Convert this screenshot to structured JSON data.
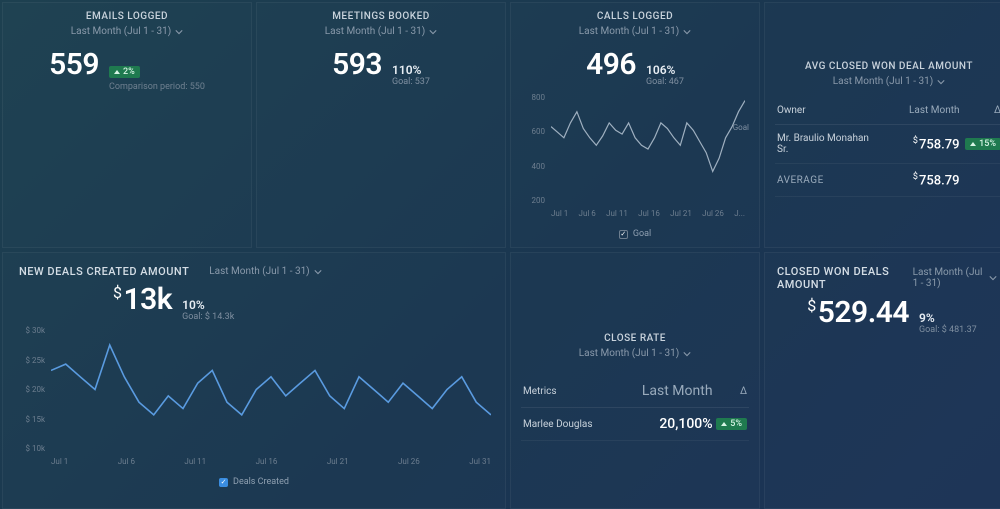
{
  "period_label": "Last Month (Jul 1 - 31)",
  "colors": {
    "line_blue": "#5a9be0",
    "line_gray": "#9fb0c0",
    "badge_bg": "#1f7a4f"
  },
  "emails": {
    "title": "EMAILS LOGGED",
    "value": "559",
    "delta": "2%",
    "comparison": "Comparison period: 550"
  },
  "meetings": {
    "title": "MEETINGS BOOKED",
    "value": "593",
    "pct": "110%",
    "goal": "Goal: 537"
  },
  "calls": {
    "title": "CALLS LOGGED",
    "value": "496",
    "pct": "106%",
    "goal": "Goal: 467",
    "y_ticks": [
      "800",
      "600",
      "400",
      "200"
    ],
    "x_ticks": [
      "Jul 1",
      "Jul 6",
      "Jul 11",
      "Jul 16",
      "Jul 21",
      "Jul 26",
      "J..."
    ],
    "goal_tag": "Goal",
    "legend": "Goal",
    "series": [
      620,
      590,
      560,
      640,
      700,
      610,
      560,
      520,
      570,
      640,
      600,
      580,
      640,
      560,
      520,
      500,
      560,
      640,
      610,
      560,
      520,
      640,
      600,
      540,
      480,
      380,
      450,
      560,
      620,
      700,
      760
    ],
    "ylim": [
      200,
      800
    ]
  },
  "avg_closed": {
    "title": "AVG CLOSED WON DEAL AMOUNT",
    "headers": {
      "c1": "Owner",
      "c2": "Last Month",
      "c3": "Δ"
    },
    "row": {
      "owner": "Mr. Braulio Monahan Sr.",
      "value": "758.79",
      "delta": "15%"
    },
    "avg": {
      "label": "AVERAGE",
      "value": "758.79"
    }
  },
  "new_deals": {
    "title": "NEW DEALS CREATED AMOUNT",
    "value": "13k",
    "pct": "10%",
    "goal": "Goal: $ 14.3k",
    "y_ticks": [
      "$ 30k",
      "$ 25k",
      "$ 20k",
      "$ 15k",
      "$ 10k"
    ],
    "x_ticks": [
      "Jul 1",
      "Jul 6",
      "Jul 11",
      "Jul 16",
      "Jul 21",
      "Jul 26",
      "Jul 31"
    ],
    "legend": "Deals Created",
    "series": [
      23,
      24,
      22,
      20,
      27,
      22,
      18,
      16,
      19,
      17,
      21,
      23,
      18,
      16,
      20,
      22,
      19,
      21,
      23,
      19,
      17,
      22,
      20,
      18,
      21,
      19,
      17,
      20,
      22,
      18,
      16
    ],
    "ylim": [
      10,
      30
    ]
  },
  "close_rate": {
    "title": "CLOSE RATE",
    "headers": {
      "c1": "Metrics",
      "c2": "Last Month",
      "c3": "Δ"
    },
    "row": {
      "name": "Marlee Douglas",
      "value": "20,100%",
      "delta": "5%"
    }
  },
  "closed_won": {
    "title": "CLOSED WON DEALS AMOUNT",
    "value": "529.44",
    "pct": "9%",
    "goal": "Goal: $ 481.37"
  }
}
